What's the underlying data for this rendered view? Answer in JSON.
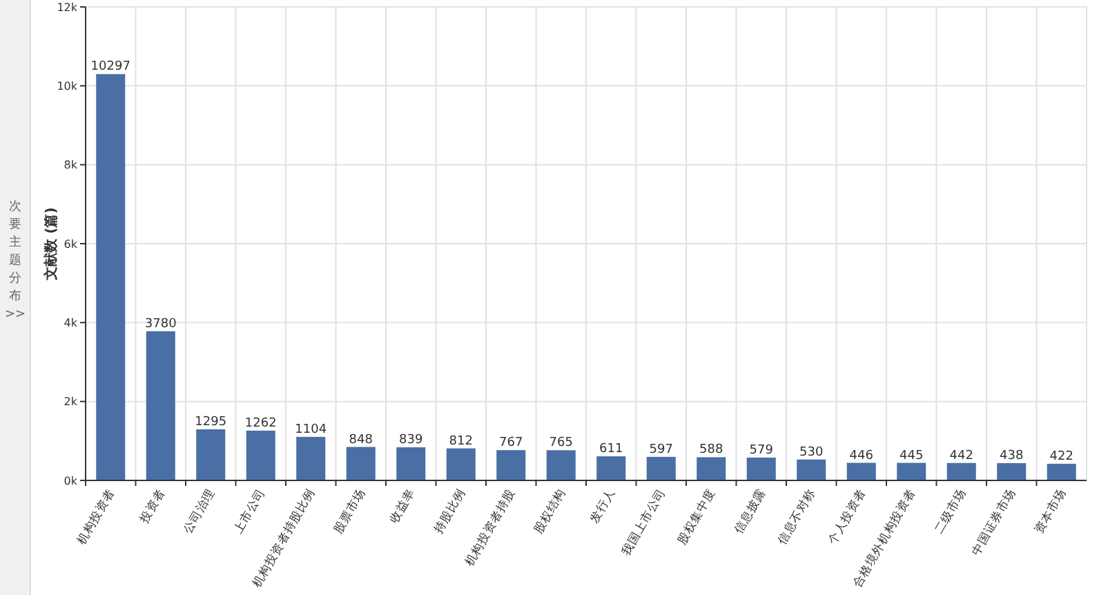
{
  "chart_data": {
    "type": "bar",
    "ylabel": "文献数 (篇)",
    "annotations": [
      "次要主题分布 >>"
    ],
    "categories": [
      "机构投资者",
      "投资者",
      "公司治理",
      "上市公司",
      "机构投资者持股比例",
      "股票市场",
      "收益率",
      "持股比例",
      "机构投资者持股",
      "股权结构",
      "发行人",
      "我国上市公司",
      "股权集中度",
      "信息披露",
      "信息不对称",
      "个人投资者",
      "合格境外机构投资者",
      "二级市场",
      "中国证券市场",
      "资本市场"
    ],
    "values": [
      10297,
      3780,
      1295,
      1262,
      1104,
      848,
      839,
      812,
      767,
      765,
      611,
      597,
      588,
      579,
      530,
      446,
      445,
      442,
      438,
      422
    ],
    "color": "#4a6fa5",
    "data_labels": true,
    "grid": true,
    "ylim": [
      0,
      12000
    ],
    "yticks": [
      {
        "value": 0,
        "label": "0k"
      },
      {
        "value": 2000,
        "label": "2k"
      },
      {
        "value": 4000,
        "label": "4k"
      },
      {
        "value": 6000,
        "label": "6k"
      },
      {
        "value": 8000,
        "label": "8k"
      },
      {
        "value": 10000,
        "label": "10k"
      },
      {
        "value": 12000,
        "label": "12k"
      }
    ]
  }
}
